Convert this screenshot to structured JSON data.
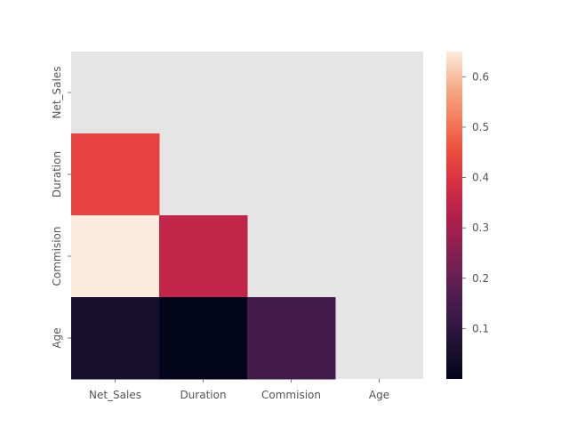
{
  "chart_data": {
    "type": "heatmap",
    "title": "",
    "xlabel": "",
    "ylabel": "",
    "x_categories": [
      "Net_Sales",
      "Duration",
      "Commision",
      "Age"
    ],
    "y_categories": [
      "Net_Sales",
      "Duration",
      "Commision",
      "Age"
    ],
    "mask": "upper triangle incl. diagonal",
    "values": [
      [
        null,
        null,
        null,
        null
      ],
      [
        0.43,
        null,
        null,
        null
      ],
      [
        0.65,
        0.35,
        null,
        null
      ],
      [
        0.05,
        0.0,
        0.14,
        null
      ]
    ],
    "colorbar": {
      "colormap": "rocket",
      "range": [
        0.0,
        0.65
      ],
      "ticks": [
        "0.1",
        "0.2",
        "0.3",
        "0.4",
        "0.5",
        "0.6"
      ]
    },
    "mask_color": "#e5e5e5",
    "grid": false
  }
}
